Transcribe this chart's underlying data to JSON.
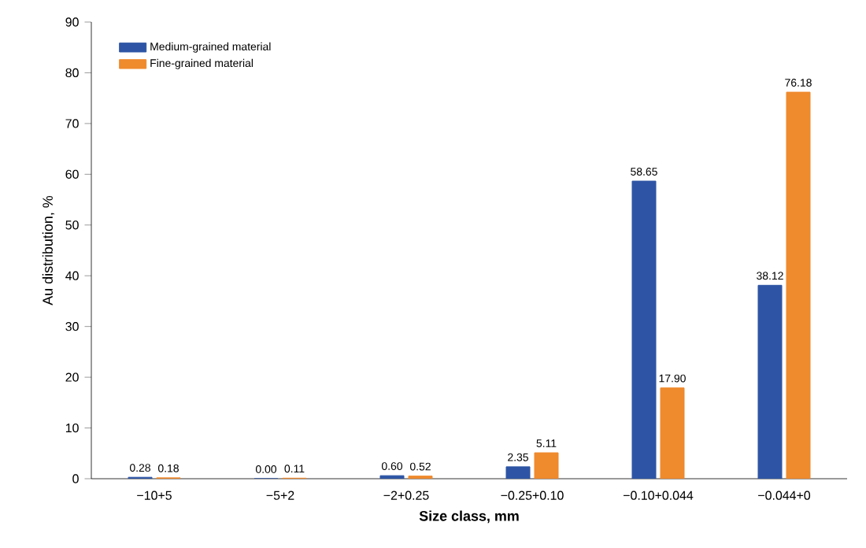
{
  "chart_data": {
    "type": "bar",
    "xlabel": "Size class, mm",
    "ylabel": "Au distribution, %",
    "categories": [
      "−10+5",
      "−5+2",
      "−2+0.25",
      "−0.25+0.10",
      "−0.10+0.044",
      "−0.044+0"
    ],
    "series": [
      {
        "name": "Medium-grained material",
        "color": "#2e55a5",
        "values": [
          0.28,
          0.0,
          0.6,
          2.35,
          58.65,
          38.12
        ],
        "value_labels": [
          "0.28",
          "0.00",
          "0.60",
          "2.35",
          "58.65",
          "38.12"
        ]
      },
      {
        "name": "Fine-grained material",
        "color": "#ef8a2d",
        "values": [
          0.18,
          0.11,
          0.52,
          5.11,
          17.9,
          76.18
        ],
        "value_labels": [
          "0.18",
          "0.11",
          "0.52",
          "5.11",
          "17.90",
          "76.18"
        ]
      }
    ],
    "ylim": [
      0,
      90
    ],
    "yticks": [
      0,
      10,
      20,
      30,
      40,
      50,
      60,
      70,
      80,
      90
    ],
    "legend": "top left",
    "grid": false
  }
}
